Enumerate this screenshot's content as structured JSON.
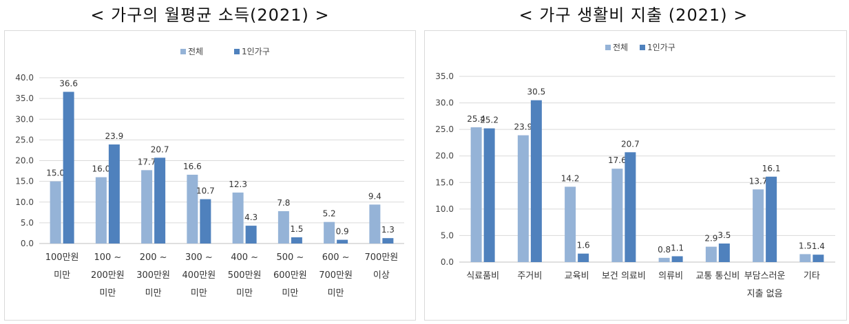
{
  "titles": {
    "left": "< 가구의 월평균 소득(2021) >",
    "right": "< 가구 생활비 지출 (2021) >"
  },
  "colors": {
    "series1": "#95b3d7",
    "series2": "#4f81bd",
    "grid": "#d9d9d9",
    "axis": "#bfbfbf"
  },
  "chart_data": [
    {
      "type": "bar",
      "title": "< 가구의 월평균 소득(2021) >",
      "categories": [
        [
          "100만원",
          "미만"
        ],
        [
          "100 ~",
          "200만원",
          "미만"
        ],
        [
          "200 ~",
          "300만원",
          "미만"
        ],
        [
          "300 ~",
          "400만원",
          "미만"
        ],
        [
          "400 ~",
          "500만원",
          "미만"
        ],
        [
          "500 ~",
          "600만원",
          "미만"
        ],
        [
          "600 ~",
          "700만원",
          "미만"
        ],
        [
          "700만원",
          "이상"
        ]
      ],
      "series": [
        {
          "name": "전체",
          "values": [
            15.0,
            16.0,
            17.7,
            16.6,
            12.3,
            7.8,
            5.2,
            9.4
          ]
        },
        {
          "name": "1인가구",
          "values": [
            36.6,
            23.9,
            20.7,
            10.7,
            4.3,
            1.5,
            0.9,
            1.3
          ]
        }
      ],
      "ylim": [
        0,
        40
      ],
      "yticks": [
        "0.0",
        "5.0",
        "10.0",
        "15.0",
        "20.0",
        "25.0",
        "30.0",
        "35.0",
        "40.0"
      ],
      "grid": true,
      "legend": "top-center",
      "xlabel": "",
      "ylabel": ""
    },
    {
      "type": "bar",
      "title": "< 가구 생활비 지출 (2021) >",
      "categories": [
        [
          "식료품비"
        ],
        [
          "주거비"
        ],
        [
          "교육비"
        ],
        [
          "보건 의료비"
        ],
        [
          "의류비"
        ],
        [
          "교통 통신비"
        ],
        [
          "부담스러운",
          "지출 없음"
        ],
        [
          "기타"
        ]
      ],
      "series": [
        {
          "name": "전체",
          "values": [
            25.4,
            23.9,
            14.2,
            17.6,
            0.8,
            2.9,
            13.7,
            1.5
          ]
        },
        {
          "name": "1인가구",
          "values": [
            25.2,
            30.5,
            1.6,
            20.7,
            1.1,
            3.5,
            16.1,
            1.4
          ]
        }
      ],
      "ylim": [
        0,
        35
      ],
      "yticks": [
        "0.0",
        "5.0",
        "10.0",
        "15.0",
        "20.0",
        "25.0",
        "30.0",
        "35.0"
      ],
      "grid": true,
      "legend": "top-center",
      "xlabel": "",
      "ylabel": ""
    }
  ]
}
